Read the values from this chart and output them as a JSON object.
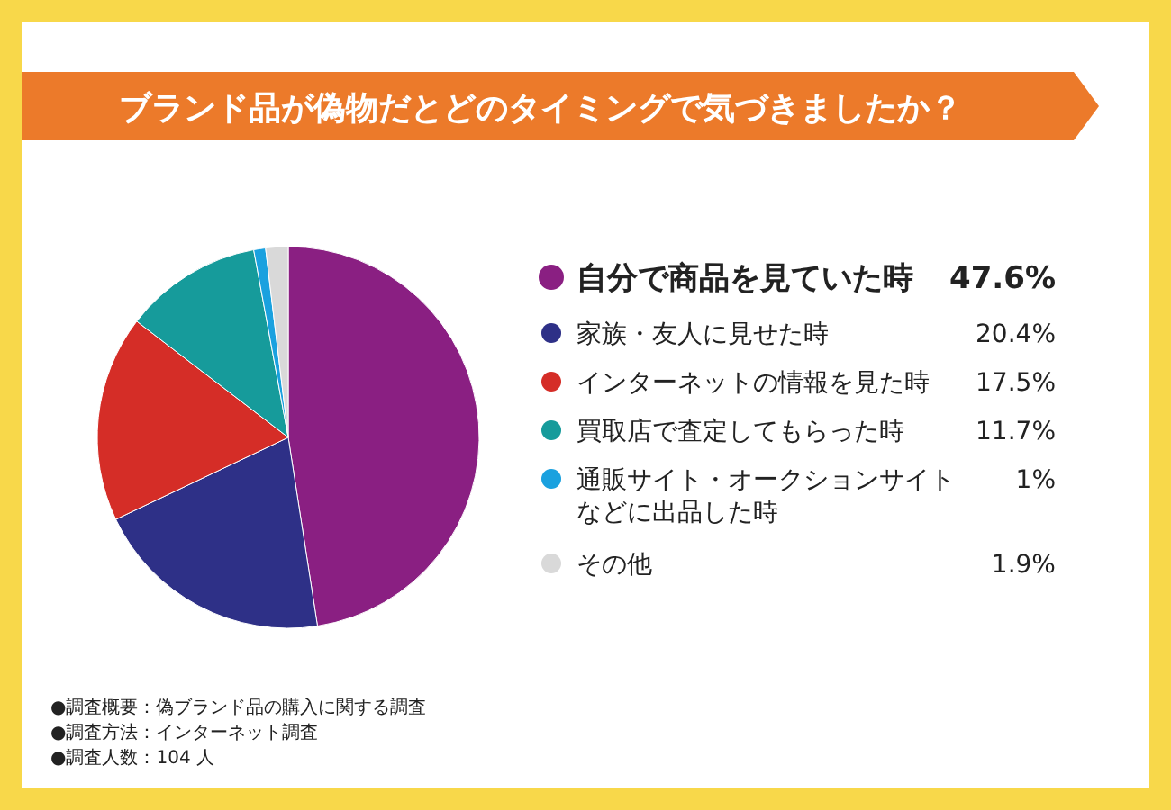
{
  "chart_data": {
    "type": "pie",
    "title": "ブランド品が偽物だとどのタイミングで気づきましたか？",
    "categories": [
      "自分で商品を見ていた時",
      "家族・友人に見せた時",
      "インターネットの情報を見た時",
      "買取店で査定してもらった時",
      "通販サイト・オークションサイトなどに出品した時",
      "その他"
    ],
    "values": [
      47.6,
      20.4,
      17.5,
      11.7,
      1,
      1.9
    ],
    "colors": [
      "#8a1f82",
      "#2e3087",
      "#d52d27",
      "#169b9b",
      "#1aa1df",
      "#d9d9d9"
    ],
    "value_labels": [
      "47.6%",
      "20.4%",
      "17.5%",
      "11.7%",
      "1%",
      "1.9%"
    ],
    "legend": "right",
    "annotations": [
      "●調査概要：偽ブランド品の購入に関する調査",
      "●調査方法：インターネット調査",
      "●調査人数：104 人"
    ]
  }
}
